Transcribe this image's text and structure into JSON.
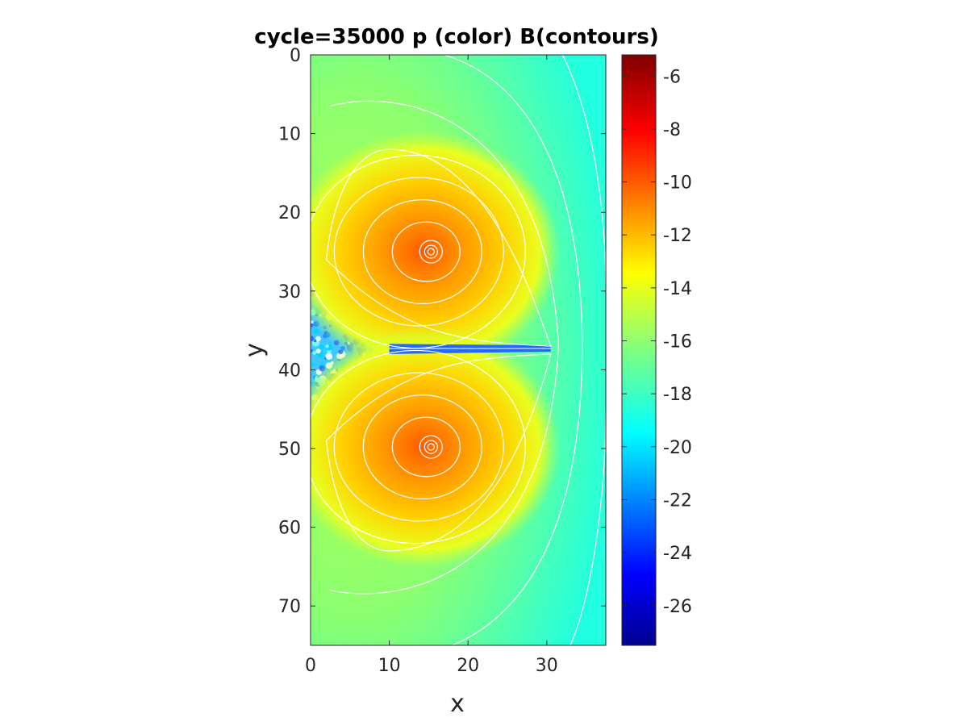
{
  "chart_data": {
    "type": "heatmap",
    "title": "cycle=35000  p (color) B(contours)",
    "xlabel": "x",
    "ylabel": "y",
    "xlim": [
      0,
      37.5
    ],
    "ylim": [
      0,
      75
    ],
    "y_reversed": true,
    "x_ticks": [
      "0",
      "10",
      "20",
      "30"
    ],
    "y_ticks": [
      "0",
      "10",
      "20",
      "30",
      "40",
      "50",
      "60",
      "70"
    ],
    "colorbar": {
      "colormap": "jet",
      "range": [
        -27.5,
        -5.2
      ],
      "ticks": [
        "-6",
        "-8",
        "-10",
        "-12",
        "-14",
        "-16",
        "-18",
        "-20",
        "-22",
        "-24",
        "-26"
      ]
    },
    "features": [
      {
        "kind": "pressure-peak",
        "x": 15.3,
        "y": 25,
        "value": -11
      },
      {
        "kind": "pressure-peak",
        "x": 15.3,
        "y": 49.8,
        "value": -11
      },
      {
        "kind": "current-sheet",
        "x_from": 10,
        "x_to": 30.5,
        "y": 37.3,
        "value": -22
      },
      {
        "kind": "turbulent-region",
        "x_from": 0,
        "x_to": 12,
        "y_from": 26,
        "y_to": 50,
        "value": -19
      }
    ]
  }
}
